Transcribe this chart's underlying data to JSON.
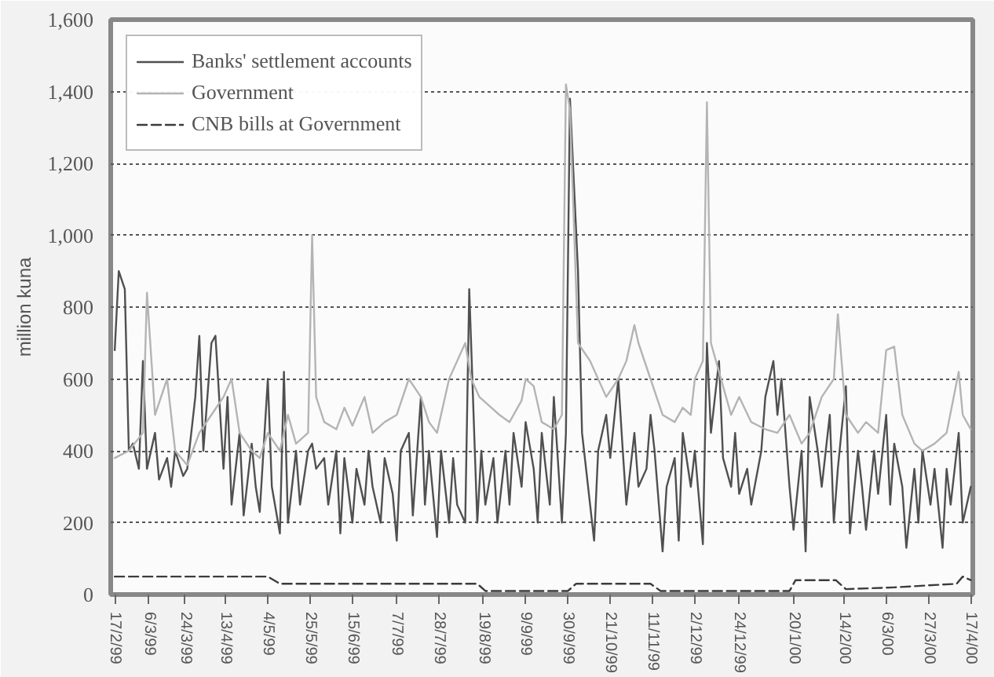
{
  "chart_data": {
    "type": "line",
    "ylabel": "million kuna",
    "xlim": [
      "1999-02-15",
      "2000-04-18"
    ],
    "xticks": [
      {
        "value": "1999-02-17",
        "label": "17/2/99"
      },
      {
        "value": "1999-03-06",
        "label": "6/3/99"
      },
      {
        "value": "1999-03-24",
        "label": "24/3/99"
      },
      {
        "value": "1999-04-13",
        "label": "13/4/99"
      },
      {
        "value": "1999-05-04",
        "label": "4/5/99"
      },
      {
        "value": "1999-05-25",
        "label": "25/5/99"
      },
      {
        "value": "1999-06-15",
        "label": "15/6/99"
      },
      {
        "value": "1999-07-07",
        "label": "7/7/99"
      },
      {
        "value": "1999-07-28",
        "label": "28/7/99"
      },
      {
        "value": "1999-08-19",
        "label": "19/8/99"
      },
      {
        "value": "1999-09-09",
        "label": "9/9/99"
      },
      {
        "value": "1999-09-30",
        "label": "30/9/99"
      },
      {
        "value": "1999-10-21",
        "label": "21/10/99"
      },
      {
        "value": "1999-11-11",
        "label": "11/11/99"
      },
      {
        "value": "1999-12-02",
        "label": "2/12/99"
      },
      {
        "value": "1999-12-24",
        "label": "24/12/99"
      },
      {
        "value": "2000-01-20",
        "label": "20/1/00"
      },
      {
        "value": "2000-02-14",
        "label": "14/2/00"
      },
      {
        "value": "2000-03-06",
        "label": "6/3/00"
      },
      {
        "value": "2000-03-27",
        "label": "27/3/00"
      },
      {
        "value": "2000-04-17",
        "label": "17/4/00"
      }
    ],
    "ylim": [
      0,
      1600
    ],
    "yticks": [
      0,
      200,
      400,
      600,
      800,
      {
        "value": 1000,
        "label": "1,000"
      },
      {
        "value": 1200,
        "label": "1,200"
      },
      {
        "value": 1400,
        "label": "1,400"
      },
      {
        "value": 1600,
        "label": "1,600"
      }
    ],
    "grid": "y",
    "legend": "top left",
    "series": [
      {
        "name": "Banks' settlement accounts",
        "color": "#505050",
        "line_style": "solid",
        "x": [
          "1999-02-17",
          "1999-02-19",
          "1999-02-22",
          "1999-02-24",
          "1999-02-26",
          "1999-03-01",
          "1999-03-03",
          "1999-03-05",
          "1999-03-09",
          "1999-03-11",
          "1999-03-15",
          "1999-03-17",
          "1999-03-19",
          "1999-03-23",
          "1999-03-25",
          "1999-03-29",
          "1999-03-31",
          "1999-04-02",
          "1999-04-06",
          "1999-04-08",
          "1999-04-12",
          "1999-04-14",
          "1999-04-16",
          "1999-04-20",
          "1999-04-22",
          "1999-04-26",
          "1999-04-28",
          "1999-04-30",
          "1999-05-04",
          "1999-05-06",
          "1999-05-10",
          "1999-05-12",
          "1999-05-14",
          "1999-05-18",
          "1999-05-20",
          "1999-05-24",
          "1999-05-26",
          "1999-05-28",
          "1999-06-01",
          "1999-06-03",
          "1999-06-07",
          "1999-06-09",
          "1999-06-11",
          "1999-06-15",
          "1999-06-17",
          "1999-06-21",
          "1999-06-23",
          "1999-06-25",
          "1999-06-29",
          "1999-07-01",
          "1999-07-05",
          "1999-07-07",
          "1999-07-09",
          "1999-07-13",
          "1999-07-15",
          "1999-07-19",
          "1999-07-21",
          "1999-07-23",
          "1999-07-27",
          "1999-07-29",
          "1999-08-02",
          "1999-08-04",
          "1999-08-06",
          "1999-08-10",
          "1999-08-12",
          "1999-08-16",
          "1999-08-18",
          "1999-08-20",
          "1999-08-24",
          "1999-08-26",
          "1999-08-30",
          "1999-09-01",
          "1999-09-03",
          "1999-09-07",
          "1999-09-09",
          "1999-09-13",
          "1999-09-15",
          "1999-09-17",
          "1999-09-21",
          "1999-09-23",
          "1999-09-27",
          "1999-09-29",
          "1999-10-01",
          "1999-10-05",
          "1999-10-07",
          "1999-10-11",
          "1999-10-13",
          "1999-10-15",
          "1999-10-19",
          "1999-10-21",
          "1999-10-25",
          "1999-10-27",
          "1999-10-29",
          "1999-11-02",
          "1999-11-04",
          "1999-11-08",
          "1999-11-10",
          "1999-11-12",
          "1999-11-16",
          "1999-11-18",
          "1999-11-22",
          "1999-11-24",
          "1999-11-26",
          "1999-11-30",
          "1999-12-02",
          "1999-12-06",
          "1999-12-08",
          "1999-12-10",
          "1999-12-14",
          "1999-12-16",
          "1999-12-20",
          "1999-12-22",
          "1999-12-24",
          "1999-12-28",
          "1999-12-30",
          "2000-01-04",
          "2000-01-06",
          "2000-01-10",
          "2000-01-12",
          "2000-01-14",
          "2000-01-18",
          "2000-01-20",
          "2000-01-24",
          "2000-01-26",
          "2000-01-28",
          "2000-02-01",
          "2000-02-03",
          "2000-02-07",
          "2000-02-09",
          "2000-02-11",
          "2000-02-15",
          "2000-02-17",
          "2000-02-21",
          "2000-02-23",
          "2000-02-25",
          "2000-02-29",
          "2000-03-02",
          "2000-03-06",
          "2000-03-08",
          "2000-03-10",
          "2000-03-14",
          "2000-03-16",
          "2000-03-20",
          "2000-03-22",
          "2000-03-24",
          "2000-03-28",
          "2000-03-30",
          "2000-04-03",
          "2000-04-05",
          "2000-04-07",
          "2000-04-11",
          "2000-04-13",
          "2000-04-17"
        ],
        "values": [
          680,
          900,
          850,
          400,
          420,
          350,
          650,
          350,
          450,
          320,
          380,
          300,
          400,
          330,
          350,
          550,
          720,
          400,
          700,
          720,
          350,
          550,
          250,
          450,
          220,
          420,
          300,
          230,
          600,
          300,
          170,
          620,
          200,
          400,
          250,
          400,
          420,
          350,
          380,
          250,
          400,
          170,
          380,
          200,
          350,
          250,
          400,
          300,
          200,
          380,
          280,
          150,
          400,
          450,
          220,
          550,
          250,
          400,
          160,
          400,
          200,
          380,
          250,
          200,
          850,
          200,
          400,
          250,
          380,
          200,
          400,
          250,
          450,
          300,
          480,
          350,
          200,
          450,
          250,
          550,
          200,
          450,
          1380,
          900,
          450,
          250,
          150,
          400,
          500,
          380,
          600,
          420,
          250,
          450,
          300,
          350,
          500,
          400,
          120,
          300,
          380,
          150,
          450,
          300,
          400,
          140,
          700,
          450,
          650,
          380,
          300,
          450,
          280,
          350,
          250,
          400,
          550,
          650,
          500,
          600,
          300,
          180,
          400,
          120,
          550,
          400,
          300,
          500,
          200,
          350,
          580,
          170,
          400,
          300,
          180,
          400,
          280,
          500,
          250,
          420,
          300,
          130,
          350,
          200,
          400,
          250,
          350,
          130,
          350,
          250,
          450,
          200,
          300
        ]
      },
      {
        "name": "Government",
        "color": "#b4b4b4",
        "line_style": "solid",
        "x": [
          "1999-02-17",
          "1999-02-24",
          "1999-03-03",
          "1999-03-05",
          "1999-03-09",
          "1999-03-15",
          "1999-03-19",
          "1999-03-25",
          "1999-03-31",
          "1999-04-06",
          "1999-04-12",
          "1999-04-16",
          "1999-04-20",
          "1999-04-26",
          "1999-04-30",
          "1999-05-04",
          "1999-05-10",
          "1999-05-14",
          "1999-05-18",
          "1999-05-24",
          "1999-05-26",
          "1999-05-28",
          "1999-06-01",
          "1999-06-07",
          "1999-06-11",
          "1999-06-15",
          "1999-06-21",
          "1999-06-25",
          "1999-07-01",
          "1999-07-07",
          "1999-07-13",
          "1999-07-19",
          "1999-07-23",
          "1999-07-27",
          "1999-08-02",
          "1999-08-06",
          "1999-08-10",
          "1999-08-13",
          "1999-08-17",
          "1999-08-23",
          "1999-08-27",
          "1999-09-01",
          "1999-09-07",
          "1999-09-09",
          "1999-09-13",
          "1999-09-17",
          "1999-09-23",
          "1999-09-27",
          "1999-09-29",
          "1999-10-01",
          "1999-10-05",
          "1999-10-11",
          "1999-10-15",
          "1999-10-19",
          "1999-10-25",
          "1999-10-29",
          "1999-11-02",
          "1999-11-04",
          "1999-11-10",
          "1999-11-16",
          "1999-11-22",
          "1999-11-26",
          "1999-11-30",
          "1999-12-02",
          "1999-12-06",
          "1999-12-08",
          "1999-12-10",
          "1999-12-14",
          "1999-12-20",
          "1999-12-24",
          "1999-12-30",
          "2000-01-06",
          "2000-01-12",
          "2000-01-18",
          "2000-01-24",
          "2000-01-28",
          "2000-02-03",
          "2000-02-09",
          "2000-02-11",
          "2000-02-15",
          "2000-02-21",
          "2000-02-25",
          "2000-03-02",
          "2000-03-06",
          "2000-03-10",
          "2000-03-14",
          "2000-03-20",
          "2000-03-24",
          "2000-03-30",
          "2000-04-05",
          "2000-04-11",
          "2000-04-13",
          "2000-04-17"
        ],
        "values": [
          380,
          400,
          450,
          840,
          500,
          600,
          400,
          360,
          450,
          500,
          550,
          600,
          450,
          400,
          380,
          450,
          400,
          500,
          420,
          450,
          1000,
          550,
          480,
          460,
          520,
          470,
          550,
          450,
          480,
          500,
          600,
          550,
          480,
          450,
          600,
          650,
          700,
          600,
          550,
          520,
          500,
          480,
          540,
          600,
          580,
          480,
          460,
          500,
          1420,
          1350,
          700,
          650,
          600,
          550,
          600,
          650,
          750,
          700,
          600,
          500,
          480,
          520,
          500,
          600,
          650,
          1370,
          700,
          620,
          500,
          550,
          480,
          460,
          450,
          500,
          420,
          450,
          550,
          600,
          780,
          500,
          450,
          480,
          450,
          680,
          690,
          500,
          420,
          400,
          420,
          450,
          620,
          500,
          460
        ]
      },
      {
        "name": "CNB bills at Government",
        "color": "#3c3c3c",
        "line_style": "dashed",
        "x": [
          "1999-02-17",
          "1999-05-04",
          "1999-05-10",
          "1999-08-16",
          "1999-08-20",
          "1999-09-30",
          "1999-10-04",
          "1999-11-10",
          "1999-11-15",
          "2000-01-18",
          "2000-01-21",
          "2000-02-10",
          "2000-02-15",
          "2000-03-10",
          "2000-04-10",
          "2000-04-13",
          "2000-04-17"
        ],
        "values": [
          50,
          50,
          30,
          30,
          10,
          10,
          30,
          30,
          10,
          10,
          40,
          40,
          15,
          20,
          30,
          50,
          40
        ]
      }
    ]
  }
}
